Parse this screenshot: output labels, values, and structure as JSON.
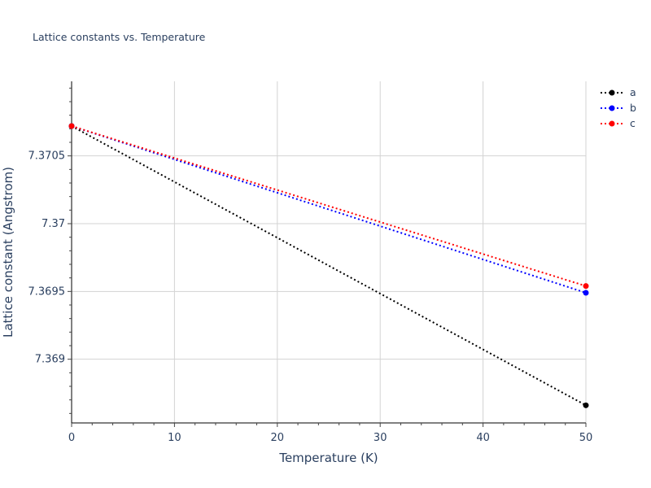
{
  "chart_data": {
    "type": "line",
    "title": "Lattice constants vs. Temperature",
    "xlabel": "Temperature (K)",
    "ylabel": "Lattice constant (Angstrom)",
    "xlim": [
      0,
      50
    ],
    "ylim": [
      7.36853,
      7.37105
    ],
    "xticks": [
      0,
      10,
      20,
      30,
      40,
      50
    ],
    "yticks": [
      7.369,
      7.3695,
      7.37,
      7.3705
    ],
    "ytick_labels": [
      "7.369",
      "7.3695",
      "7.37",
      "7.3705"
    ],
    "grid": true,
    "legend_position": "top-right",
    "series": [
      {
        "name": "a",
        "color": "#000000",
        "x": [
          0,
          50
        ],
        "y": [
          7.37072,
          7.36866
        ]
      },
      {
        "name": "b",
        "color": "#0000ff",
        "x": [
          0,
          50
        ],
        "y": [
          7.37072,
          7.36949
        ]
      },
      {
        "name": "c",
        "color": "#ff0000",
        "x": [
          0,
          50
        ],
        "y": [
          7.37072,
          7.36954
        ]
      }
    ]
  }
}
